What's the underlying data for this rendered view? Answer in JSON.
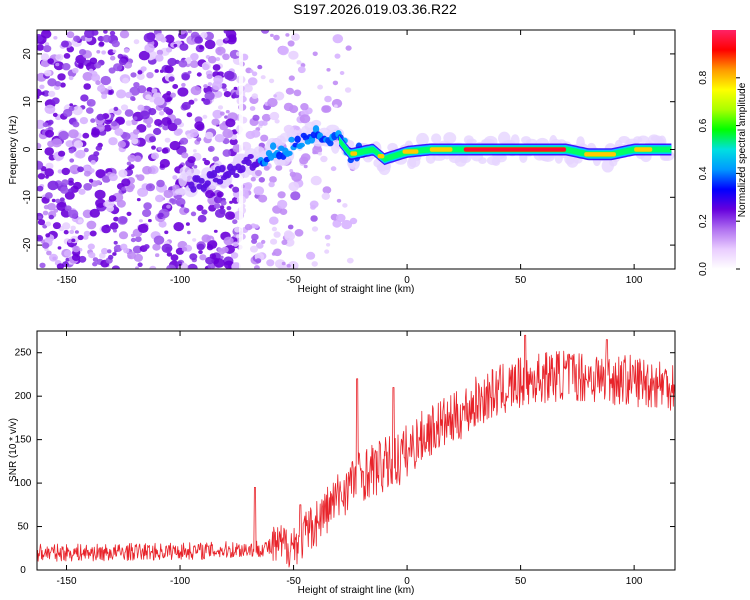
{
  "figure": {
    "title": "S197.2026.019.03.36.R22"
  },
  "chart_data": [
    {
      "type": "heatmap",
      "xlabel": "Height of straight line (km)",
      "ylabel": "Frequency (Hz)",
      "xlim": [
        -163,
        118
      ],
      "ylim": [
        -25,
        25
      ],
      "x_ticks": [
        -150,
        -100,
        -50,
        0,
        50,
        100
      ],
      "y_ticks": [
        -20,
        -10,
        0,
        10,
        20
      ],
      "colorbar": {
        "label": "Normalized spectral amplitude",
        "range": [
          0,
          1
        ],
        "ticks": [
          0.0,
          0.2,
          0.4,
          0.6,
          0.8
        ],
        "colors": [
          "#ffffff",
          "#e9ccff",
          "#b070f0",
          "#6600dd",
          "#0000ff",
          "#0099ff",
          "#00e0e0",
          "#00ff00",
          "#aaff00",
          "#ffff00",
          "#ff9900",
          "#ff0000",
          "#ff2266"
        ]
      },
      "frequency_track": [
        {
          "x": -90,
          "y": -7
        },
        {
          "x": -80,
          "y": -5
        },
        {
          "x": -70,
          "y": -3
        },
        {
          "x": -60,
          "y": -1
        },
        {
          "x": -50,
          "y": 1
        },
        {
          "x": -40,
          "y": 3
        },
        {
          "x": -30,
          "y": 2
        },
        {
          "x": -25,
          "y": -1
        },
        {
          "x": -15,
          "y": 0
        },
        {
          "x": -10,
          "y": -2
        },
        {
          "x": 0,
          "y": -0.5
        },
        {
          "x": 10,
          "y": 0
        },
        {
          "x": 30,
          "y": 0
        },
        {
          "x": 50,
          "y": 0
        },
        {
          "x": 70,
          "y": 0
        },
        {
          "x": 80,
          "y": -1
        },
        {
          "x": 90,
          "y": -1
        },
        {
          "x": 100,
          "y": 0
        },
        {
          "x": 110,
          "y": 0
        },
        {
          "x": 118,
          "y": 0
        }
      ]
    },
    {
      "type": "line",
      "xlabel": "Height of straight line (km)",
      "ylabel": "SNR (10 * v/v)",
      "xlim": [
        -163,
        118
      ],
      "ylim": [
        0,
        275
      ],
      "x_ticks": [
        -150,
        -100,
        -50,
        0,
        50,
        100
      ],
      "y_ticks": [
        0,
        50,
        100,
        150,
        200,
        250
      ],
      "series": [
        {
          "name": "SNR",
          "color": "#e8232a",
          "x": [
            -163,
            -150,
            -140,
            -130,
            -120,
            -110,
            -100,
            -90,
            -80,
            -70,
            -60,
            -50,
            -45,
            -40,
            -35,
            -30,
            -25,
            -20,
            -15,
            -10,
            -5,
            0,
            5,
            10,
            15,
            20,
            25,
            30,
            35,
            40,
            45,
            50,
            60,
            70,
            80,
            90,
            100,
            110,
            118
          ],
          "values": [
            20,
            20,
            20,
            20,
            21,
            21,
            22,
            22,
            23,
            24,
            26,
            30,
            40,
            55,
            70,
            85,
            100,
            110,
            115,
            120,
            125,
            135,
            150,
            160,
            168,
            172,
            182,
            192,
            200,
            205,
            210,
            215,
            222,
            225,
            222,
            220,
            218,
            215,
            213
          ]
        }
      ],
      "spikes": [
        {
          "x": -67,
          "y": 95
        },
        {
          "x": -47,
          "y": 75
        },
        {
          "x": -22,
          "y": 220
        },
        {
          "x": -6,
          "y": 210
        },
        {
          "x": 52,
          "y": 270
        },
        {
          "x": 88,
          "y": 265
        }
      ]
    }
  ]
}
